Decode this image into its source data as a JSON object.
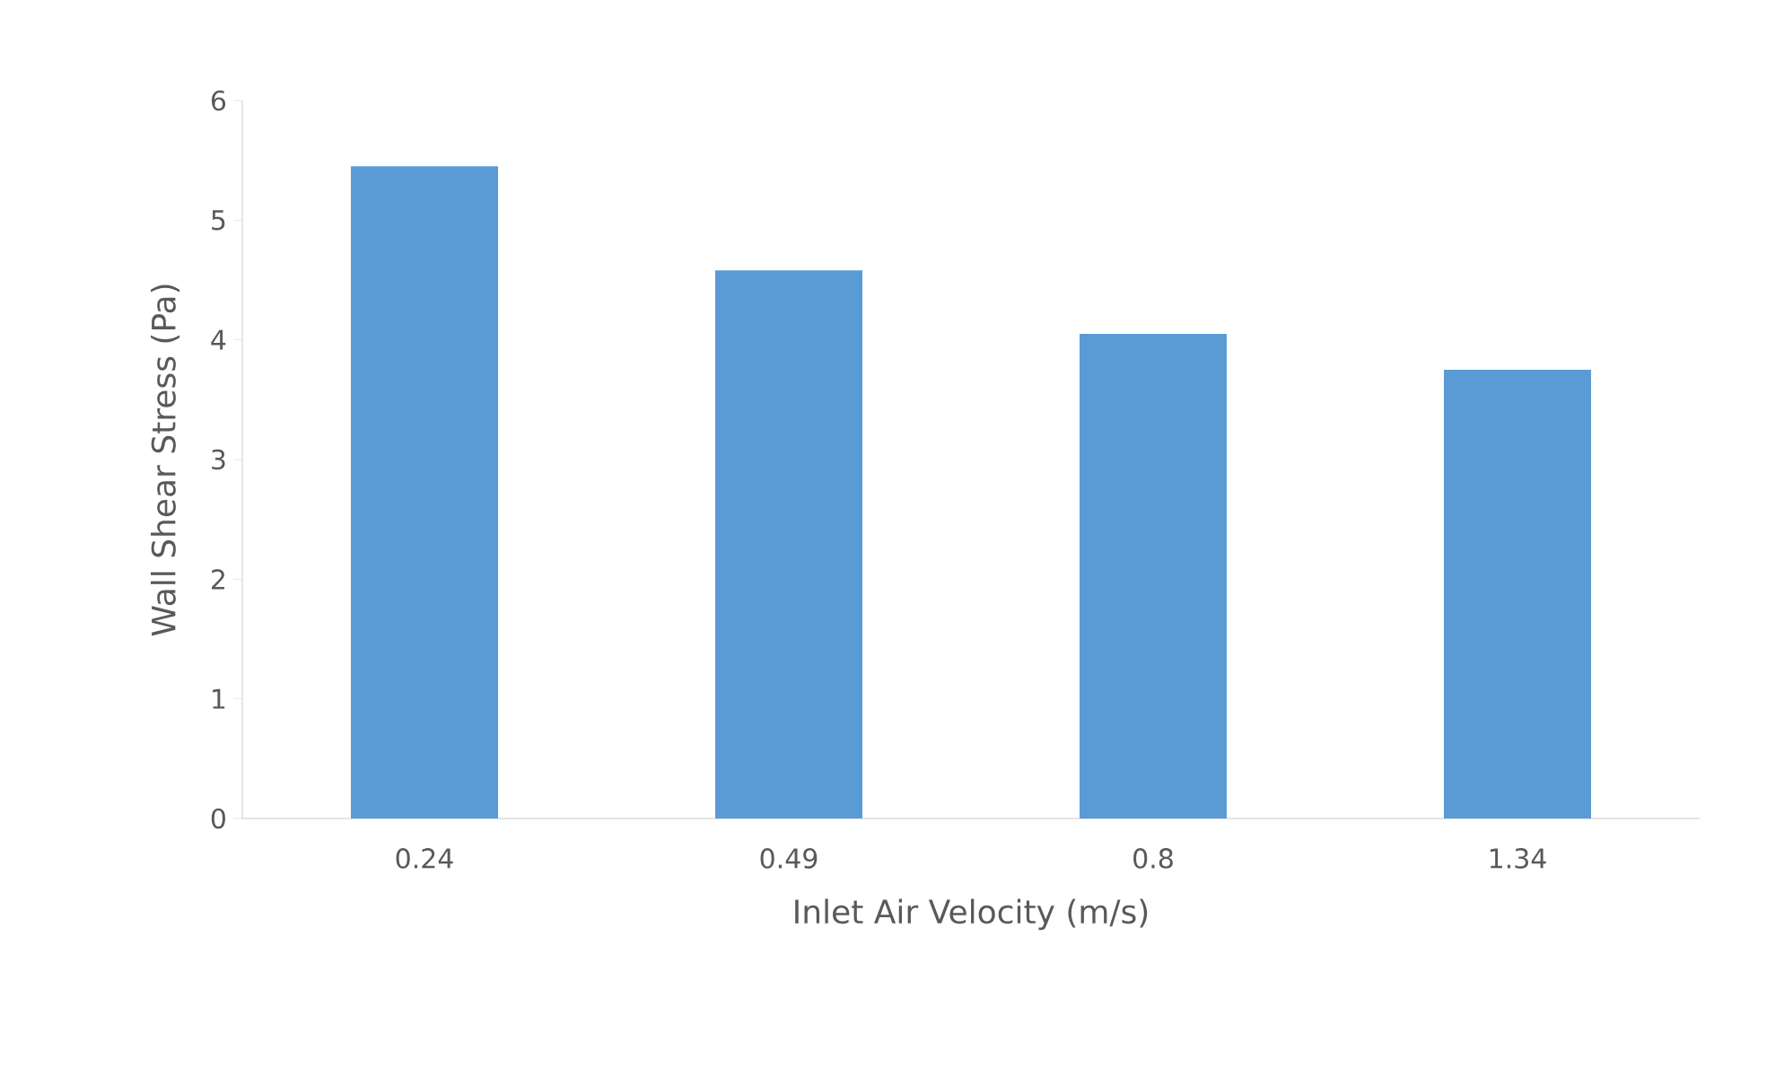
{
  "chart_data": {
    "type": "bar",
    "xlabel": "Inlet Air Velocity (m/s)",
    "ylabel": "Wall Shear Stress (Pa)",
    "categories": [
      "0.24",
      "0.49",
      "0.8",
      "1.34"
    ],
    "values": [
      5.45,
      4.58,
      4.05,
      3.75
    ],
    "color": "#5b9bd5",
    "ylim": [
      0,
      6
    ],
    "yticks": [
      0,
      1,
      2,
      3,
      4,
      5,
      6
    ],
    "grid": false
  }
}
